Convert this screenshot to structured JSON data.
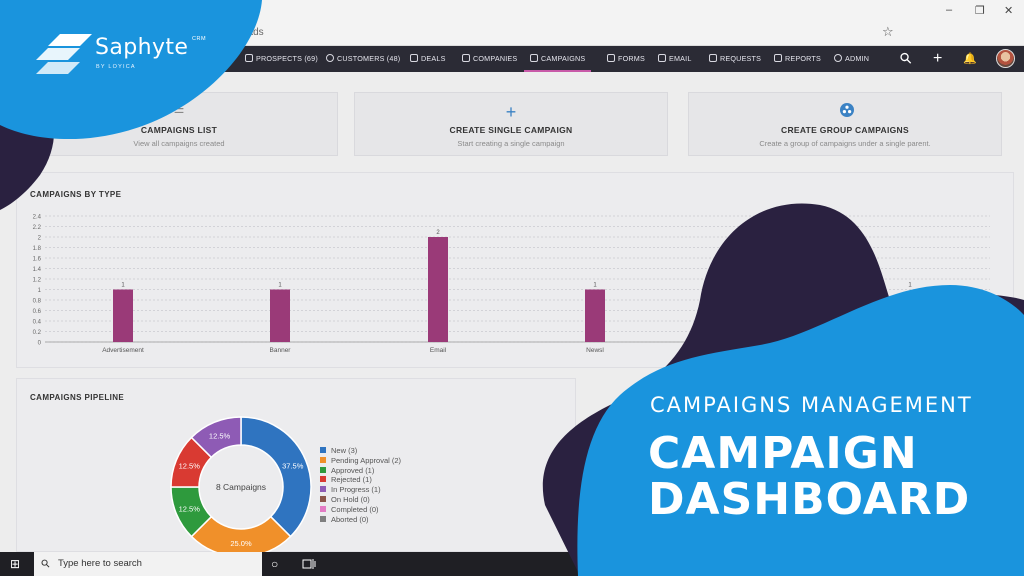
{
  "browser": {
    "address_text": "eads",
    "star_glyph": "☆",
    "minimize_glyph": "–",
    "maximize_glyph": "❐",
    "close_glyph": "✕"
  },
  "nav": {
    "items": [
      {
        "label": "PROSPECTS (69)",
        "icon": "prospects-icon"
      },
      {
        "label": "CUSTOMERS (48)",
        "icon": "customers-icon"
      },
      {
        "label": "DEALS",
        "icon": "deals-icon"
      },
      {
        "label": "COMPANIES",
        "icon": "companies-icon"
      },
      {
        "label": "CAMPAIGNS",
        "icon": "campaigns-icon",
        "active": true
      },
      {
        "label": "FORMS",
        "icon": "forms-icon"
      },
      {
        "label": "EMAIL",
        "icon": "email-icon"
      },
      {
        "label": "REQUESTS",
        "icon": "requests-icon"
      },
      {
        "label": "REPORTS",
        "icon": "reports-icon"
      },
      {
        "label": "ADMIN",
        "icon": "admin-icon"
      }
    ],
    "search_glyph": "⚲",
    "add_glyph": "+",
    "bell_glyph": "🔔"
  },
  "cards": [
    {
      "title": "CAMPAIGNS LIST",
      "subtitle": "View all campaigns created",
      "icon": "list-icon"
    },
    {
      "title": "CREATE SINGLE CAMPAIGN",
      "subtitle": "Start creating a single campaign",
      "icon": "plus-icon",
      "glyph": "+"
    },
    {
      "title": "CREATE GROUP CAMPAIGNS",
      "subtitle": "Create a group of campaigns under a single parent.",
      "icon": "group-icon"
    }
  ],
  "campaigns_by_type": {
    "title": "CAMPAIGNS BY TYPE"
  },
  "campaigns_pipeline": {
    "title": "CAMPAIGNS PIPELINE"
  },
  "chart_data": [
    {
      "type": "bar",
      "title": "CAMPAIGNS BY TYPE",
      "categories": [
        "Advertisement",
        "Banner",
        "Email",
        "Newsl"
      ],
      "values": [
        1,
        1,
        2,
        1
      ],
      "hidden_value_label": "1",
      "ylim": [
        0,
        2.4
      ],
      "yticks": [
        "0",
        "0.2",
        "0.4",
        "0.6",
        "0.8",
        "1",
        "1.2",
        "1.4",
        "1.6",
        "1.8",
        "2",
        "2.2",
        "2.4"
      ],
      "grid": true,
      "bar_color": "#9a3a78"
    },
    {
      "type": "pie",
      "title": "CAMPAIGNS PIPELINE",
      "center_label": "8 Campaigns",
      "slices": [
        {
          "label": "New",
          "value": 3,
          "percent_label": "37.5%",
          "color": "#2f74c0"
        },
        {
          "label": "Pending Approval",
          "value": 2,
          "percent_label": "25.0%",
          "color": "#f0902a"
        },
        {
          "label": "Approved",
          "value": 1,
          "percent_label": "12.5%",
          "color": "#2e9a3d"
        },
        {
          "label": "Rejected",
          "value": 1,
          "percent_label": "12.5%",
          "color": "#d93a32"
        },
        {
          "label": "In Progress",
          "value": 1,
          "percent_label": "12.5%",
          "color": "#8e5bb5"
        },
        {
          "label": "On Hold",
          "value": 0,
          "percent_label": "",
          "color": "#8c564b"
        },
        {
          "label": "Completed",
          "value": 0,
          "percent_label": "",
          "color": "#e37bc4"
        },
        {
          "label": "Aborted",
          "value": 0,
          "percent_label": "",
          "color": "#7f7f7f"
        }
      ],
      "legend_labels": [
        "New (3)",
        "Pending Approval (2)",
        "Approved (1)",
        "Rejected (1)",
        "In Progress (1)",
        "On Hold (0)",
        "Completed (0)",
        "Aborted (0)"
      ],
      "legend_placement": "right"
    }
  ],
  "taskbar": {
    "search_placeholder": "Type here to search",
    "windows_glyph": "⊞",
    "cortana_glyph": "○"
  },
  "promo": {
    "brand": "Saphyte",
    "brand_sup": "CRM",
    "by_line": "BY LOYICA",
    "subtitle": "CAMPAIGNS MANAGEMENT",
    "title_line1": "CAMPAIGN",
    "title_line2": "DASHBOARD"
  },
  "colors": {
    "nav_bg": "#2b2b35",
    "accent_blue": "#1a94dd",
    "blob_dark": "#2a2140",
    "active_tab": "#c85aa8"
  }
}
